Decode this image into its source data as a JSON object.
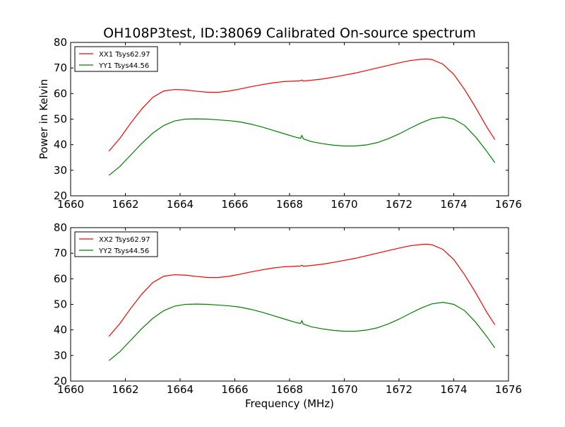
{
  "figure": {
    "title": "OH108P3test, ID:38069 Calibrated On-source spectrum"
  },
  "chart_data": [
    {
      "type": "line",
      "title": "OH108P3test, ID:38069 Calibrated On-source spectrum",
      "xlabel": "",
      "ylabel": "Power in Kelvin",
      "xlim": [
        1660,
        1676
      ],
      "ylim": [
        20,
        80
      ],
      "xticks": [
        1660,
        1662,
        1664,
        1666,
        1668,
        1670,
        1672,
        1674,
        1676
      ],
      "yticks": [
        20,
        30,
        40,
        50,
        60,
        70,
        80
      ],
      "legend": "top-left",
      "grid": false,
      "series": [
        {
          "name": "XX1 Tsys62.97",
          "color": "#ff0000",
          "x": [
            1661.4,
            1661.8,
            1662.2,
            1662.6,
            1663.0,
            1663.4,
            1663.8,
            1664.2,
            1664.6,
            1665.0,
            1665.4,
            1665.8,
            1666.2,
            1666.6,
            1667.0,
            1667.4,
            1667.8,
            1668.2,
            1668.4,
            1668.45,
            1668.5,
            1668.8,
            1669.2,
            1669.6,
            1670.0,
            1670.4,
            1670.8,
            1671.2,
            1671.6,
            1672.0,
            1672.4,
            1672.8,
            1673.0,
            1673.2,
            1673.6,
            1674.0,
            1674.4,
            1674.8,
            1675.2,
            1675.5
          ],
          "y": [
            37.5,
            42.5,
            48.5,
            54.0,
            58.5,
            61.0,
            61.6,
            61.4,
            60.9,
            60.5,
            60.5,
            61.0,
            61.8,
            62.7,
            63.5,
            64.2,
            64.7,
            64.9,
            65.0,
            65.3,
            64.9,
            65.2,
            65.7,
            66.4,
            67.2,
            68.0,
            69.0,
            70.0,
            71.0,
            72.0,
            72.9,
            73.4,
            73.5,
            73.3,
            71.5,
            67.5,
            61.5,
            54.5,
            47.0,
            42.0
          ]
        },
        {
          "name": "YY1 Tsys44.56",
          "color": "#008000",
          "x": [
            1661.4,
            1661.8,
            1662.2,
            1662.6,
            1663.0,
            1663.4,
            1663.8,
            1664.2,
            1664.6,
            1665.0,
            1665.4,
            1665.8,
            1666.2,
            1666.6,
            1667.0,
            1667.4,
            1667.8,
            1668.2,
            1668.4,
            1668.45,
            1668.5,
            1668.8,
            1669.2,
            1669.6,
            1670.0,
            1670.4,
            1670.8,
            1671.2,
            1671.6,
            1672.0,
            1672.4,
            1672.8,
            1673.2,
            1673.6,
            1674.0,
            1674.4,
            1674.8,
            1675.2,
            1675.5
          ],
          "y": [
            28.0,
            31.5,
            36.0,
            40.5,
            44.5,
            47.5,
            49.3,
            50.0,
            50.1,
            50.0,
            49.7,
            49.4,
            48.9,
            48.0,
            46.9,
            45.6,
            44.3,
            43.0,
            42.5,
            43.6,
            42.3,
            41.2,
            40.4,
            39.8,
            39.5,
            39.5,
            39.9,
            40.8,
            42.3,
            44.2,
            46.4,
            48.5,
            50.2,
            50.8,
            50.0,
            47.5,
            43.0,
            37.5,
            33.0
          ]
        }
      ]
    },
    {
      "type": "line",
      "title": "",
      "xlabel": "Frequency (MHz)",
      "ylabel": "",
      "xlim": [
        1660,
        1676
      ],
      "ylim": [
        20,
        80
      ],
      "xticks": [
        1660,
        1662,
        1664,
        1666,
        1668,
        1670,
        1672,
        1674,
        1676
      ],
      "yticks": [
        20,
        30,
        40,
        50,
        60,
        70,
        80
      ],
      "legend": "top-left",
      "grid": false,
      "series": [
        {
          "name": "XX2 Tsys62.97",
          "color": "#ff0000",
          "x": [
            1661.4,
            1661.8,
            1662.2,
            1662.6,
            1663.0,
            1663.4,
            1663.8,
            1664.2,
            1664.6,
            1665.0,
            1665.4,
            1665.8,
            1666.2,
            1666.6,
            1667.0,
            1667.4,
            1667.8,
            1668.2,
            1668.4,
            1668.45,
            1668.5,
            1668.8,
            1669.2,
            1669.6,
            1670.0,
            1670.4,
            1670.8,
            1671.2,
            1671.6,
            1672.0,
            1672.4,
            1672.8,
            1673.0,
            1673.2,
            1673.6,
            1674.0,
            1674.4,
            1674.8,
            1675.2,
            1675.5
          ],
          "y": [
            37.5,
            42.5,
            48.5,
            54.0,
            58.5,
            61.0,
            61.6,
            61.4,
            60.9,
            60.5,
            60.5,
            61.0,
            61.8,
            62.7,
            63.5,
            64.2,
            64.7,
            64.9,
            65.0,
            65.3,
            64.9,
            65.2,
            65.7,
            66.4,
            67.2,
            68.0,
            69.0,
            70.0,
            71.0,
            72.0,
            72.9,
            73.4,
            73.5,
            73.3,
            71.5,
            67.5,
            61.5,
            54.5,
            47.0,
            42.0
          ]
        },
        {
          "name": "YY2 Tsys44.56",
          "color": "#008000",
          "x": [
            1661.4,
            1661.8,
            1662.2,
            1662.6,
            1663.0,
            1663.4,
            1663.8,
            1664.2,
            1664.6,
            1665.0,
            1665.4,
            1665.8,
            1666.2,
            1666.6,
            1667.0,
            1667.4,
            1667.8,
            1668.2,
            1668.4,
            1668.45,
            1668.5,
            1668.8,
            1669.2,
            1669.6,
            1670.0,
            1670.4,
            1670.8,
            1671.2,
            1671.6,
            1672.0,
            1672.4,
            1672.8,
            1673.2,
            1673.6,
            1674.0,
            1674.4,
            1674.8,
            1675.2,
            1675.5
          ],
          "y": [
            28.0,
            31.5,
            36.0,
            40.5,
            44.5,
            47.5,
            49.3,
            50.0,
            50.1,
            50.0,
            49.7,
            49.4,
            48.9,
            48.0,
            46.9,
            45.6,
            44.3,
            43.0,
            42.5,
            43.6,
            42.3,
            41.2,
            40.4,
            39.8,
            39.5,
            39.5,
            39.9,
            40.8,
            42.3,
            44.2,
            46.4,
            48.5,
            50.2,
            50.8,
            50.0,
            47.5,
            43.0,
            37.5,
            33.0
          ]
        }
      ]
    }
  ]
}
